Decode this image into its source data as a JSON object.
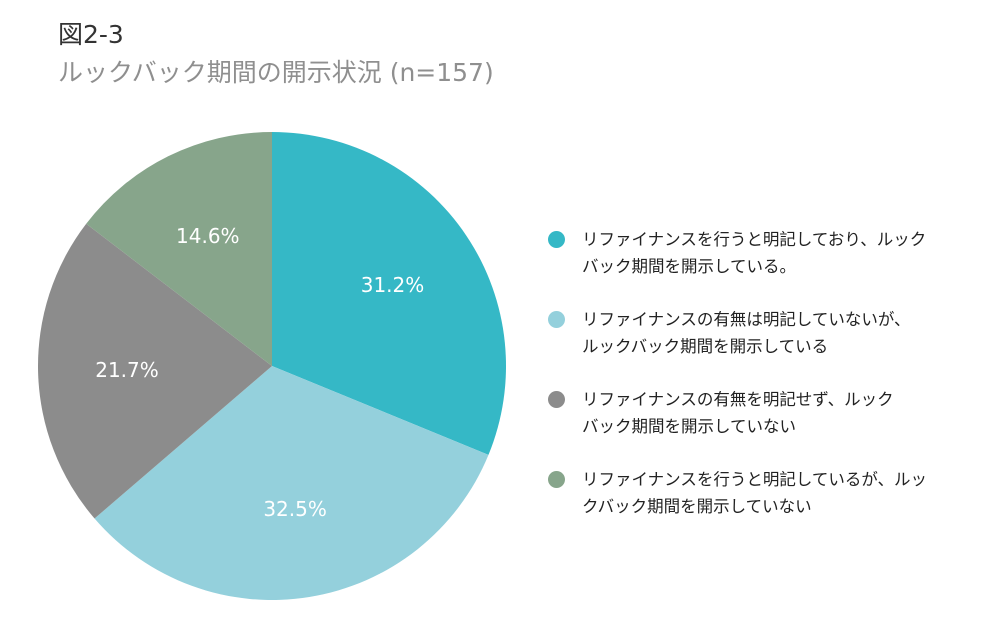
{
  "figure": {
    "label": "図2-3",
    "title": "ルックバック期間の開示状況 (n=157)"
  },
  "chart_data": {
    "type": "pie",
    "title": "ルックバック期間の開示状況 (n=157)",
    "legend_position": "right",
    "slices": [
      {
        "label": "リファイナンスを行うと明記しており、ルックバック期間を開示している。",
        "value": 31.2,
        "display": "31.2%",
        "color": "#35b8c6"
      },
      {
        "label": "リファイナンスの有無は明記していないが、ルックバック期間を開示している",
        "value": 32.5,
        "display": "32.5%",
        "color": "#94d0dc"
      },
      {
        "label": "リファイナンスの有無を明記せず、ルックバック期間を開示していない",
        "value": 21.7,
        "display": "21.7%",
        "color": "#8c8c8c"
      },
      {
        "label": "リファイナンスを行うと明記しているが、ルックバック期間を開示していない",
        "value": 14.6,
        "display": "14.6%",
        "color": "#87a58b"
      }
    ]
  },
  "legend": {
    "items": [
      {
        "line1": "リファイナンスを行うと明記しており、ルック",
        "line2": "バック期間を開示している。",
        "color": "#35b8c6"
      },
      {
        "line1": "リファイナンスの有無は明記していないが、",
        "line2": "ルックバック期間を開示している",
        "color": "#94d0dc"
      },
      {
        "line1": "リファイナンスの有無を明記せず、ルック",
        "line2": "バック期間を開示していない",
        "color": "#8c8c8c"
      },
      {
        "line1": "リファイナンスを行うと明記しているが、ルッ",
        "line2": "クバック期間を開示していない",
        "color": "#87a58b"
      }
    ]
  }
}
